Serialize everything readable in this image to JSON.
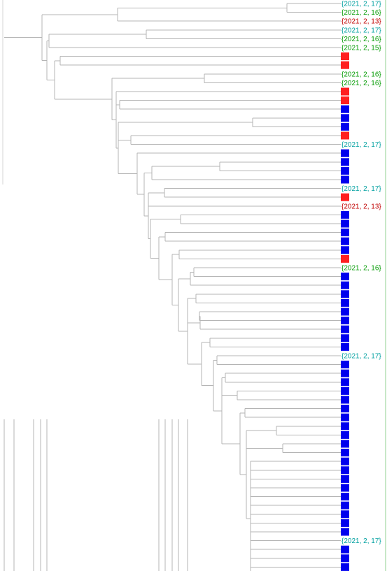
{
  "colors": {
    "red_square": "#ff2020",
    "blue_square": "#0000ee",
    "label_cyan": "#00a0a0",
    "label_green": "#009a00",
    "label_red": "#c00000",
    "branch_line": "#b4b4b4"
  },
  "leaves": [
    {
      "kind": "label",
      "text": "{2021, 2, 17}",
      "color": "cyan"
    },
    {
      "kind": "label",
      "text": "{2021, 2, 16}",
      "color": "green"
    },
    {
      "kind": "label",
      "text": "{2021, 2, 13}",
      "color": "red"
    },
    {
      "kind": "label",
      "text": "{2021, 2, 17}",
      "color": "cyan"
    },
    {
      "kind": "label",
      "text": "{2021, 2, 16}",
      "color": "green"
    },
    {
      "kind": "label",
      "text": "{2021, 2, 15}",
      "color": "green"
    },
    {
      "kind": "square",
      "color": "red"
    },
    {
      "kind": "square",
      "color": "red"
    },
    {
      "kind": "label",
      "text": "{2021, 2, 16}",
      "color": "green"
    },
    {
      "kind": "label",
      "text": "{2021, 2, 16}",
      "color": "green"
    },
    {
      "kind": "square",
      "color": "red"
    },
    {
      "kind": "square",
      "color": "red"
    },
    {
      "kind": "square",
      "color": "blue"
    },
    {
      "kind": "square",
      "color": "blue"
    },
    {
      "kind": "square",
      "color": "blue"
    },
    {
      "kind": "square",
      "color": "red"
    },
    {
      "kind": "label",
      "text": "{2021, 2, 17}",
      "color": "cyan"
    },
    {
      "kind": "square",
      "color": "blue"
    },
    {
      "kind": "square",
      "color": "blue"
    },
    {
      "kind": "square",
      "color": "blue"
    },
    {
      "kind": "square",
      "color": "blue"
    },
    {
      "kind": "label",
      "text": "{2021, 2, 17}",
      "color": "cyan"
    },
    {
      "kind": "square",
      "color": "red"
    },
    {
      "kind": "label",
      "text": "{2021, 2, 13}",
      "color": "red"
    },
    {
      "kind": "square",
      "color": "blue"
    },
    {
      "kind": "square",
      "color": "blue"
    },
    {
      "kind": "square",
      "color": "blue"
    },
    {
      "kind": "square",
      "color": "blue"
    },
    {
      "kind": "square",
      "color": "blue"
    },
    {
      "kind": "square",
      "color": "red"
    },
    {
      "kind": "label",
      "text": "{2021, 2, 16}",
      "color": "green"
    },
    {
      "kind": "square",
      "color": "blue"
    },
    {
      "kind": "square",
      "color": "blue"
    },
    {
      "kind": "square",
      "color": "blue"
    },
    {
      "kind": "square",
      "color": "blue"
    },
    {
      "kind": "square",
      "color": "blue"
    },
    {
      "kind": "square",
      "color": "blue"
    },
    {
      "kind": "square",
      "color": "blue"
    },
    {
      "kind": "square",
      "color": "blue"
    },
    {
      "kind": "square",
      "color": "blue"
    },
    {
      "kind": "label",
      "text": "{2021, 2, 17}",
      "color": "cyan"
    },
    {
      "kind": "square",
      "color": "blue"
    },
    {
      "kind": "square",
      "color": "blue"
    },
    {
      "kind": "square",
      "color": "blue"
    },
    {
      "kind": "square",
      "color": "blue"
    },
    {
      "kind": "square",
      "color": "blue"
    },
    {
      "kind": "square",
      "color": "blue"
    },
    {
      "kind": "square",
      "color": "blue"
    },
    {
      "kind": "square",
      "color": "blue"
    },
    {
      "kind": "square",
      "color": "blue"
    },
    {
      "kind": "square",
      "color": "blue"
    },
    {
      "kind": "square",
      "color": "blue"
    },
    {
      "kind": "square",
      "color": "blue"
    },
    {
      "kind": "square",
      "color": "blue"
    },
    {
      "kind": "square",
      "color": "blue"
    },
    {
      "kind": "square",
      "color": "blue"
    },
    {
      "kind": "square",
      "color": "blue"
    },
    {
      "kind": "square",
      "color": "blue"
    },
    {
      "kind": "square",
      "color": "blue"
    },
    {
      "kind": "square",
      "color": "blue"
    },
    {
      "kind": "square",
      "color": "blue"
    },
    {
      "kind": "label",
      "text": "{2021, 2, 17}",
      "color": "cyan"
    },
    {
      "kind": "square",
      "color": "blue"
    },
    {
      "kind": "square",
      "color": "blue"
    },
    {
      "kind": "square",
      "color": "blue"
    },
    {
      "kind": "square",
      "color": "blue"
    }
  ]
}
